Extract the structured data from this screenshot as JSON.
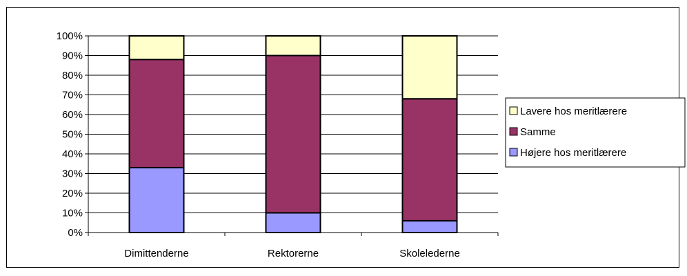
{
  "chart_data": {
    "type": "bar",
    "stacked": true,
    "categories": [
      "Dimittenderne",
      "Rektorerne",
      "Skolelederne"
    ],
    "series": [
      {
        "name": "Højere hos meritlærere",
        "values": [
          33,
          10,
          6
        ],
        "color": "#9999FF"
      },
      {
        "name": "Samme",
        "values": [
          55,
          80,
          62
        ],
        "color": "#993366"
      },
      {
        "name": "Lavere hos meritlærere",
        "values": [
          12,
          10,
          32
        ],
        "color": "#FFFFCC"
      }
    ],
    "y_ticks": [
      "0%",
      "10%",
      "20%",
      "30%",
      "40%",
      "50%",
      "60%",
      "70%",
      "80%",
      "90%",
      "100%"
    ],
    "ylim": [
      0,
      100
    ],
    "grid": true,
    "legend_position": "right",
    "legend_order": [
      "Lavere hos meritlærere",
      "Samme",
      "Højere hos meritlærere"
    ]
  }
}
